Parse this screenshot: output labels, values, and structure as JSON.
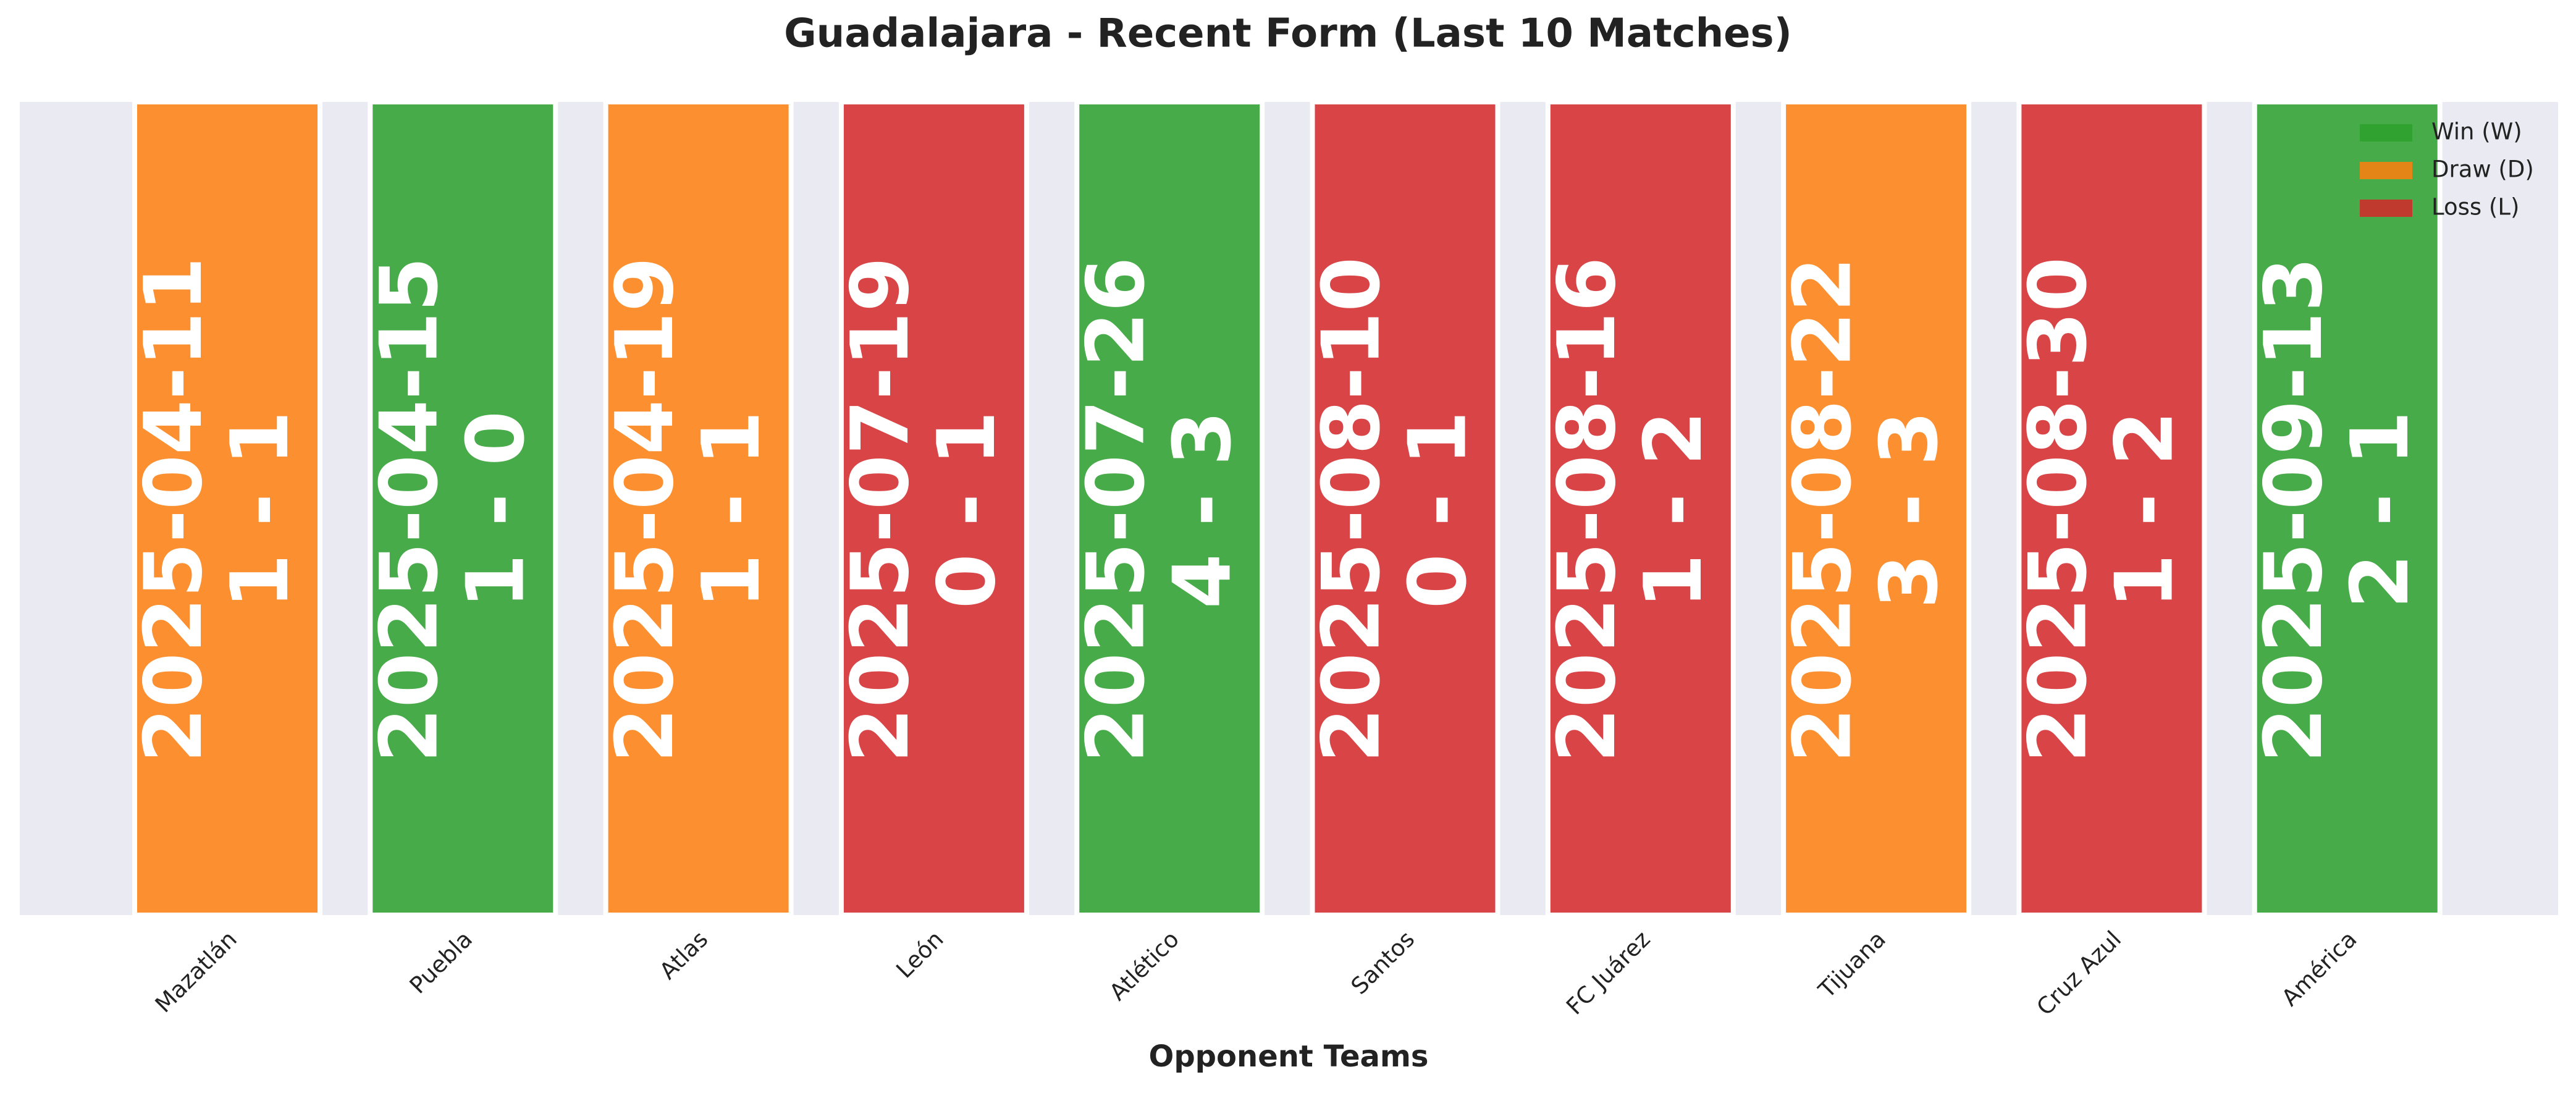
{
  "chart_data": {
    "type": "bar",
    "title": "Guadalajara - Recent Form (Last 10 Matches)",
    "xlabel": "Opponent Teams",
    "categories": [
      "Mazatlán",
      "Puebla",
      "Atlas",
      "León",
      "Atlético",
      "Santos",
      "FC Juárez",
      "Tijuana",
      "Cruz Azul",
      "América"
    ],
    "dates": [
      "2025-04-11",
      "2025-04-15",
      "2025-04-19",
      "2025-07-19",
      "2025-07-26",
      "2025-08-10",
      "2025-08-16",
      "2025-08-22",
      "2025-08-30",
      "2025-09-13"
    ],
    "scores": [
      "1 - 1",
      "1 - 0",
      "1 - 1",
      "0 - 1",
      "4 - 3",
      "0 - 1",
      "1 - 2",
      "3 - 3",
      "1 - 2",
      "2 - 1"
    ],
    "results": [
      "D",
      "W",
      "D",
      "L",
      "W",
      "L",
      "L",
      "D",
      "L",
      "W"
    ],
    "legend": [
      {
        "key": "W",
        "label": "Win (W)",
        "color": "#2ca02c"
      },
      {
        "key": "D",
        "label": "Draw (D)",
        "color": "#ff7f0e"
      },
      {
        "key": "L",
        "label": "Loss (L)",
        "color": "#d62728"
      }
    ],
    "legend_position": "upper right"
  }
}
